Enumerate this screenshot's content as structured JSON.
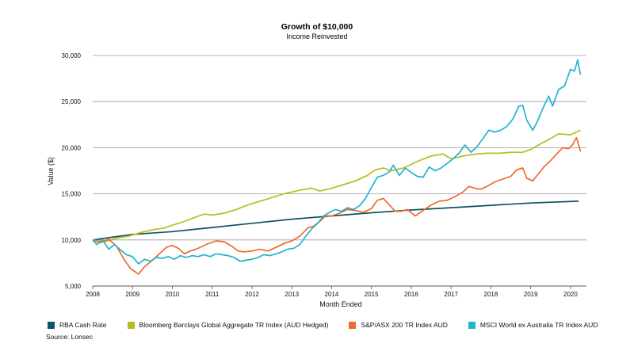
{
  "chart_data": {
    "type": "line",
    "title": "Growth of $10,000",
    "subtitle": "Income Reinvested",
    "xlabel": "Month Ended",
    "ylabel": "Value ($)",
    "xlim": [
      2008,
      2020.4
    ],
    "ylim": [
      5000,
      30000
    ],
    "x_ticks": [
      "2008",
      "2009",
      "2010",
      "2011",
      "2012",
      "2013",
      "2014",
      "2015",
      "2016",
      "2017",
      "2018",
      "2019",
      "2020"
    ],
    "y_ticks": [
      "5,000",
      "10,000",
      "15,000",
      "20,000",
      "25,000",
      "30,000"
    ],
    "grid": "horizontal",
    "legend_position": "bottom",
    "series": [
      {
        "name": "RBA Cash Rate",
        "color": "#0b5463",
        "points": [
          [
            2008.0,
            10000
          ],
          [
            2009.0,
            10600
          ],
          [
            2010.0,
            10900
          ],
          [
            2011.0,
            11350
          ],
          [
            2012.0,
            11800
          ],
          [
            2013.0,
            12250
          ],
          [
            2014.0,
            12600
          ],
          [
            2015.0,
            12950
          ],
          [
            2016.0,
            13250
          ],
          [
            2017.0,
            13500
          ],
          [
            2018.0,
            13750
          ],
          [
            2019.0,
            14000
          ],
          [
            2020.2,
            14200
          ]
        ]
      },
      {
        "name": "Bloomberg Barclays Global Aggregate TR Index (AUD Hedged)",
        "color": "#b8bd1f",
        "points": [
          [
            2008.0,
            10000
          ],
          [
            2008.3,
            9800
          ],
          [
            2008.6,
            10200
          ],
          [
            2008.9,
            10400
          ],
          [
            2009.2,
            10800
          ],
          [
            2009.5,
            11100
          ],
          [
            2009.8,
            11300
          ],
          [
            2010.0,
            11600
          ],
          [
            2010.3,
            12000
          ],
          [
            2010.6,
            12500
          ],
          [
            2010.8,
            12800
          ],
          [
            2011.0,
            12700
          ],
          [
            2011.3,
            12900
          ],
          [
            2011.6,
            13300
          ],
          [
            2011.9,
            13800
          ],
          [
            2012.2,
            14200
          ],
          [
            2012.5,
            14600
          ],
          [
            2012.8,
            15000
          ],
          [
            2013.0,
            15200
          ],
          [
            2013.2,
            15400
          ],
          [
            2013.5,
            15600
          ],
          [
            2013.7,
            15300
          ],
          [
            2014.0,
            15600
          ],
          [
            2014.3,
            16000
          ],
          [
            2014.6,
            16400
          ],
          [
            2014.9,
            17000
          ],
          [
            2015.1,
            17600
          ],
          [
            2015.3,
            17800
          ],
          [
            2015.5,
            17500
          ],
          [
            2015.8,
            17800
          ],
          [
            2016.0,
            18200
          ],
          [
            2016.2,
            18600
          ],
          [
            2016.5,
            19100
          ],
          [
            2016.8,
            19300
          ],
          [
            2017.0,
            18800
          ],
          [
            2017.3,
            19100
          ],
          [
            2017.6,
            19300
          ],
          [
            2017.9,
            19400
          ],
          [
            2018.2,
            19400
          ],
          [
            2018.5,
            19500
          ],
          [
            2018.8,
            19500
          ],
          [
            2019.0,
            19800
          ],
          [
            2019.2,
            20300
          ],
          [
            2019.5,
            21000
          ],
          [
            2019.7,
            21500
          ],
          [
            2020.0,
            21400
          ],
          [
            2020.25,
            21900
          ]
        ]
      },
      {
        "name": "S&P/ASX 200 TR Index AUD",
        "color": "#ef6a2e",
        "points": [
          [
            2008.0,
            10000
          ],
          [
            2008.2,
            9700
          ],
          [
            2008.4,
            10100
          ],
          [
            2008.6,
            9300
          ],
          [
            2008.8,
            7800
          ],
          [
            2008.95,
            6900
          ],
          [
            2009.15,
            6300
          ],
          [
            2009.3,
            7100
          ],
          [
            2009.5,
            7800
          ],
          [
            2009.7,
            8600
          ],
          [
            2009.85,
            9200
          ],
          [
            2010.0,
            9400
          ],
          [
            2010.15,
            9100
          ],
          [
            2010.3,
            8500
          ],
          [
            2010.45,
            8800
          ],
          [
            2010.6,
            9000
          ],
          [
            2010.75,
            9300
          ],
          [
            2010.9,
            9600
          ],
          [
            2011.1,
            9900
          ],
          [
            2011.3,
            9800
          ],
          [
            2011.5,
            9300
          ],
          [
            2011.65,
            8800
          ],
          [
            2011.8,
            8700
          ],
          [
            2012.0,
            8800
          ],
          [
            2012.2,
            9000
          ],
          [
            2012.4,
            8800
          ],
          [
            2012.55,
            9100
          ],
          [
            2012.7,
            9400
          ],
          [
            2012.85,
            9700
          ],
          [
            2013.0,
            9900
          ],
          [
            2013.2,
            10400
          ],
          [
            2013.4,
            11300
          ],
          [
            2013.55,
            11500
          ],
          [
            2013.7,
            12000
          ],
          [
            2013.85,
            12600
          ],
          [
            2014.0,
            12600
          ],
          [
            2014.2,
            12900
          ],
          [
            2014.4,
            13300
          ],
          [
            2014.6,
            13200
          ],
          [
            2014.8,
            13000
          ],
          [
            2015.0,
            13400
          ],
          [
            2015.15,
            14300
          ],
          [
            2015.3,
            14500
          ],
          [
            2015.45,
            13800
          ],
          [
            2015.6,
            13100
          ],
          [
            2015.75,
            13100
          ],
          [
            2015.9,
            13300
          ],
          [
            2016.1,
            12600
          ],
          [
            2016.3,
            13200
          ],
          [
            2016.5,
            13800
          ],
          [
            2016.7,
            14200
          ],
          [
            2016.9,
            14300
          ],
          [
            2017.1,
            14700
          ],
          [
            2017.3,
            15200
          ],
          [
            2017.45,
            15800
          ],
          [
            2017.6,
            15600
          ],
          [
            2017.75,
            15500
          ],
          [
            2017.9,
            15800
          ],
          [
            2018.1,
            16300
          ],
          [
            2018.3,
            16600
          ],
          [
            2018.5,
            16900
          ],
          [
            2018.65,
            17600
          ],
          [
            2018.8,
            17800
          ],
          [
            2018.9,
            16700
          ],
          [
            2019.05,
            16400
          ],
          [
            2019.2,
            17200
          ],
          [
            2019.35,
            18000
          ],
          [
            2019.5,
            18600
          ],
          [
            2019.65,
            19300
          ],
          [
            2019.8,
            20000
          ],
          [
            2019.95,
            19900
          ],
          [
            2020.05,
            20300
          ],
          [
            2020.15,
            21100
          ],
          [
            2020.25,
            19600
          ]
        ]
      },
      {
        "name": "MSCI World ex Australia TR Index AUD",
        "color": "#1fb4cf",
        "points": [
          [
            2008.0,
            10000
          ],
          [
            2008.1,
            9500
          ],
          [
            2008.25,
            10000
          ],
          [
            2008.4,
            9000
          ],
          [
            2008.55,
            9500
          ],
          [
            2008.7,
            8900
          ],
          [
            2008.85,
            8400
          ],
          [
            2009.0,
            8200
          ],
          [
            2009.15,
            7400
          ],
          [
            2009.3,
            7900
          ],
          [
            2009.45,
            7700
          ],
          [
            2009.6,
            8100
          ],
          [
            2009.75,
            8000
          ],
          [
            2009.9,
            8200
          ],
          [
            2010.05,
            7900
          ],
          [
            2010.2,
            8300
          ],
          [
            2010.35,
            8100
          ],
          [
            2010.5,
            8300
          ],
          [
            2010.65,
            8200
          ],
          [
            2010.8,
            8400
          ],
          [
            2010.95,
            8200
          ],
          [
            2011.1,
            8500
          ],
          [
            2011.25,
            8400
          ],
          [
            2011.4,
            8300
          ],
          [
            2011.55,
            8100
          ],
          [
            2011.7,
            7700
          ],
          [
            2011.85,
            7800
          ],
          [
            2012.0,
            7900
          ],
          [
            2012.15,
            8100
          ],
          [
            2012.3,
            8400
          ],
          [
            2012.45,
            8300
          ],
          [
            2012.6,
            8500
          ],
          [
            2012.75,
            8700
          ],
          [
            2012.9,
            9000
          ],
          [
            2013.05,
            9100
          ],
          [
            2013.2,
            9500
          ],
          [
            2013.35,
            10400
          ],
          [
            2013.5,
            11200
          ],
          [
            2013.65,
            11800
          ],
          [
            2013.8,
            12600
          ],
          [
            2013.95,
            13000
          ],
          [
            2014.1,
            13300
          ],
          [
            2014.25,
            13100
          ],
          [
            2014.4,
            13500
          ],
          [
            2014.55,
            13300
          ],
          [
            2014.7,
            13700
          ],
          [
            2014.85,
            14500
          ],
          [
            2015.0,
            15700
          ],
          [
            2015.15,
            16800
          ],
          [
            2015.3,
            17000
          ],
          [
            2015.45,
            17400
          ],
          [
            2015.55,
            18100
          ],
          [
            2015.7,
            17000
          ],
          [
            2015.85,
            17800
          ],
          [
            2016.0,
            17300
          ],
          [
            2016.15,
            16900
          ],
          [
            2016.3,
            16800
          ],
          [
            2016.45,
            17900
          ],
          [
            2016.6,
            17500
          ],
          [
            2016.75,
            17800
          ],
          [
            2016.9,
            18300
          ],
          [
            2017.05,
            18800
          ],
          [
            2017.2,
            19400
          ],
          [
            2017.35,
            20300
          ],
          [
            2017.5,
            19500
          ],
          [
            2017.65,
            20100
          ],
          [
            2017.8,
            21000
          ],
          [
            2017.95,
            21900
          ],
          [
            2018.1,
            21700
          ],
          [
            2018.25,
            21900
          ],
          [
            2018.4,
            22300
          ],
          [
            2018.55,
            23100
          ],
          [
            2018.7,
            24500
          ],
          [
            2018.8,
            24600
          ],
          [
            2018.9,
            23000
          ],
          [
            2019.05,
            21900
          ],
          [
            2019.15,
            22700
          ],
          [
            2019.3,
            24200
          ],
          [
            2019.45,
            25600
          ],
          [
            2019.55,
            24500
          ],
          [
            2019.7,
            26300
          ],
          [
            2019.85,
            26700
          ],
          [
            2020.0,
            28500
          ],
          [
            2020.1,
            28300
          ],
          [
            2020.18,
            29500
          ],
          [
            2020.25,
            27900
          ]
        ]
      }
    ],
    "source": "Source: Lonsec"
  }
}
